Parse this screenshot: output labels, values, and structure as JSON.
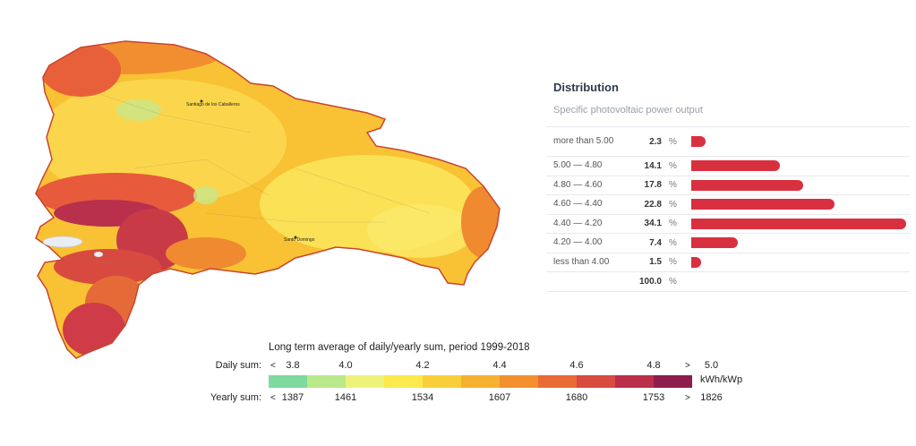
{
  "map": {
    "city_labels": [
      "Santiago de los Caballeros",
      "Santo Domingo"
    ]
  },
  "distribution": {
    "title": "Distribution",
    "subtitle": "Specific photovoltaic power output",
    "rows": [
      {
        "label": "more than 5.00",
        "value": "2.3",
        "pct": "%",
        "share": 2.3
      },
      {
        "label": "5.00 — 4.80",
        "value": "14.1",
        "pct": "%",
        "share": 14.1
      },
      {
        "label": "4.80 — 4.60",
        "value": "17.8",
        "pct": "%",
        "share": 17.8
      },
      {
        "label": "4.60 — 4.40",
        "value": "22.8",
        "pct": "%",
        "share": 22.8
      },
      {
        "label": "4.40 — 4.20",
        "value": "34.1",
        "pct": "%",
        "share": 34.1
      },
      {
        "label": "4.20 — 4.00",
        "value": "7.4",
        "pct": "%",
        "share": 7.4
      },
      {
        "label": "less than 4.00",
        "value": "1.5",
        "pct": "%",
        "share": 1.5
      },
      {
        "label": "",
        "value": "100.0",
        "pct": "%",
        "share": 0
      }
    ]
  },
  "legend": {
    "title": "Long term average of daily/yearly sum, period 1999-2018",
    "daily_label": "Daily sum:",
    "yearly_label": "Yearly sum:",
    "arrow_left": "<",
    "arrow_right": ">",
    "daily_values": [
      "3.8",
      "4.0",
      "4.2",
      "4.4",
      "4.6",
      "4.8",
      "5.0"
    ],
    "yearly_values": [
      "1387",
      "1461",
      "1534",
      "1607",
      "1680",
      "1753",
      "1826"
    ],
    "unit": "kWh/kWp",
    "colors": [
      "#7fd9a0",
      "#b9e98a",
      "#eef27a",
      "#fbe94d",
      "#f8cf3a",
      "#f6b130",
      "#f2902e",
      "#ea6a35",
      "#d94a3f",
      "#bb2f4b",
      "#8e1d4d"
    ]
  }
}
